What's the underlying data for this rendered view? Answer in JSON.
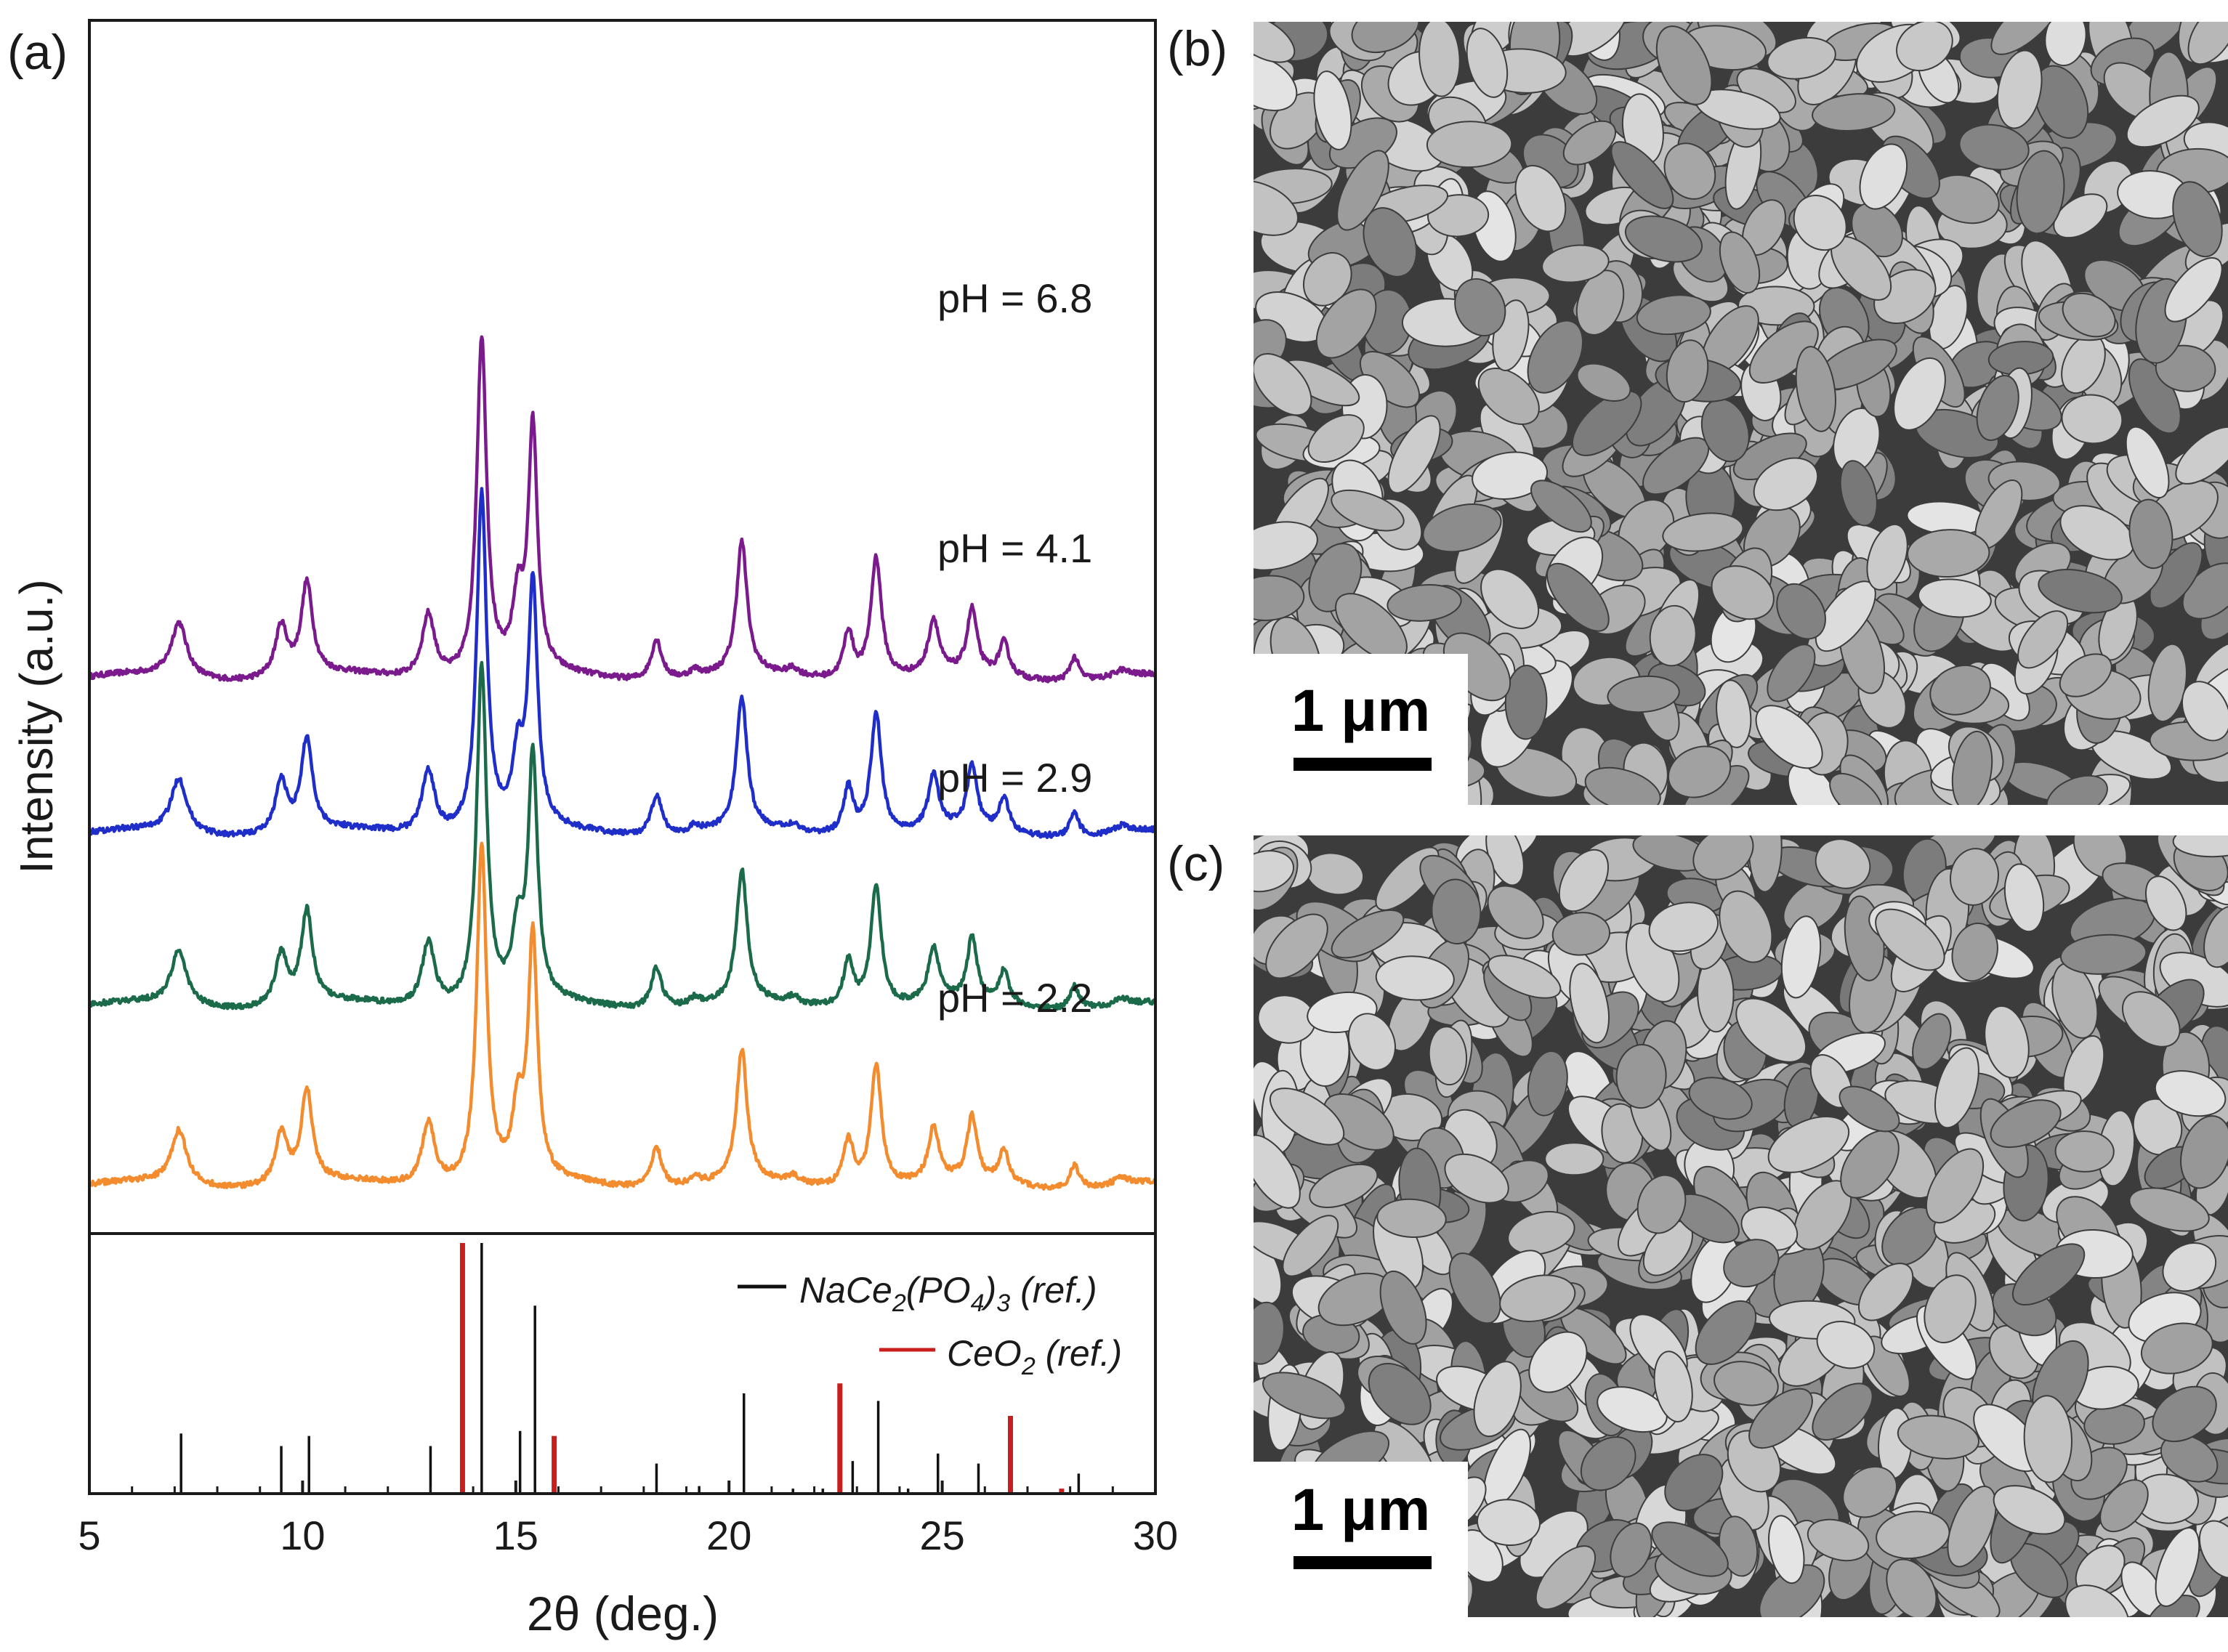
{
  "panel_labels": {
    "a": "(a)",
    "b": "(b)",
    "c": "(c)"
  },
  "sem_images": [
    {
      "panel": "b",
      "scale_bar_label": "1 μm"
    },
    {
      "panel": "c",
      "scale_bar_label": "1 μm"
    }
  ],
  "chart_data": [
    {
      "type": "line",
      "subplot": "xrd-patterns",
      "title": "",
      "xlabel": "2θ (deg.)",
      "ylabel": "Intensity (a.u.)",
      "xlim": [
        5,
        30
      ],
      "xticks": [
        5,
        10,
        15,
        20,
        25,
        30
      ],
      "ylim": [
        0,
        3.3
      ],
      "y_ticks_shown": false,
      "grid": false,
      "legend": "none (curves labelled directly)",
      "colors": {
        "pH = 6.8": "#7a1a8c",
        "pH = 4.1": "#1f2ec8",
        "pH = 2.9": "#1b6b4a",
        "pH = 2.2": "#f28c2e"
      },
      "peaks": [
        {
          "x": 7.1,
          "h": 0.16,
          "w": 0.22
        },
        {
          "x": 9.5,
          "h": 0.15,
          "w": 0.17
        },
        {
          "x": 10.1,
          "h": 0.27,
          "w": 0.16
        },
        {
          "x": 12.95,
          "h": 0.19,
          "w": 0.18
        },
        {
          "x": 14.2,
          "h": 1.0,
          "w": 0.14
        },
        {
          "x": 15.05,
          "h": 0.2,
          "w": 0.15
        },
        {
          "x": 15.4,
          "h": 0.72,
          "w": 0.13
        },
        {
          "x": 18.3,
          "h": 0.12,
          "w": 0.15
        },
        {
          "x": 19.2,
          "h": 0.02,
          "w": 0.15
        },
        {
          "x": 20.3,
          "h": 0.39,
          "w": 0.15
        },
        {
          "x": 21.5,
          "h": 0.02,
          "w": 0.15
        },
        {
          "x": 22.8,
          "h": 0.14,
          "w": 0.14
        },
        {
          "x": 23.45,
          "h": 0.36,
          "w": 0.15
        },
        {
          "x": 24.8,
          "h": 0.16,
          "w": 0.15
        },
        {
          "x": 25.7,
          "h": 0.19,
          "w": 0.14
        },
        {
          "x": 26.45,
          "h": 0.1,
          "w": 0.14
        },
        {
          "x": 28.1,
          "h": 0.07,
          "w": 0.13
        },
        {
          "x": 29.2,
          "h": 0.02,
          "w": 0.2
        }
      ],
      "series": [
        {
          "name": "pH = 6.8",
          "offset": 1.5,
          "scale": 1.0
        },
        {
          "name": "pH = 4.1",
          "offset": 1.04,
          "scale": 1.0
        },
        {
          "name": "pH = 2.9",
          "offset": 0.53,
          "scale": 1.0
        },
        {
          "name": "pH = 2.2",
          "offset": 0.0,
          "scale": 1.0
        }
      ]
    },
    {
      "type": "bar",
      "subplot": "reference-sticks",
      "xlabel": "2θ (deg.)",
      "xlim": [
        5,
        30
      ],
      "ylim": [
        0,
        100
      ],
      "legend": "top-right",
      "series": [
        {
          "name": "NaCe2(PO4)3 (ref.)",
          "legend_parts": [
            "NaCe",
            "2",
            "(PO",
            "4",
            ")",
            "3",
            " (ref.)"
          ],
          "color": "#111111",
          "x": [
            7.15,
            9.5,
            10.15,
            13.0,
            14.2,
            15.1,
            15.45,
            18.3,
            19.3,
            20.35,
            21.5,
            22.2,
            22.9,
            23.5,
            24.2,
            24.9,
            25.85,
            28.2
          ],
          "values": [
            24,
            19,
            23,
            19,
            100,
            25,
            75,
            12,
            3,
            40,
            2,
            2,
            13,
            37,
            2,
            16,
            12,
            8
          ]
        },
        {
          "name": "CeO2 (ref.)",
          "legend_parts": [
            "CeO",
            "2",
            " (ref.)"
          ],
          "color": "#c81e1e",
          "x": [
            13.75,
            15.9,
            22.6,
            26.6,
            27.8
          ],
          "values": [
            100,
            23,
            44,
            31,
            2
          ]
        }
      ]
    }
  ]
}
